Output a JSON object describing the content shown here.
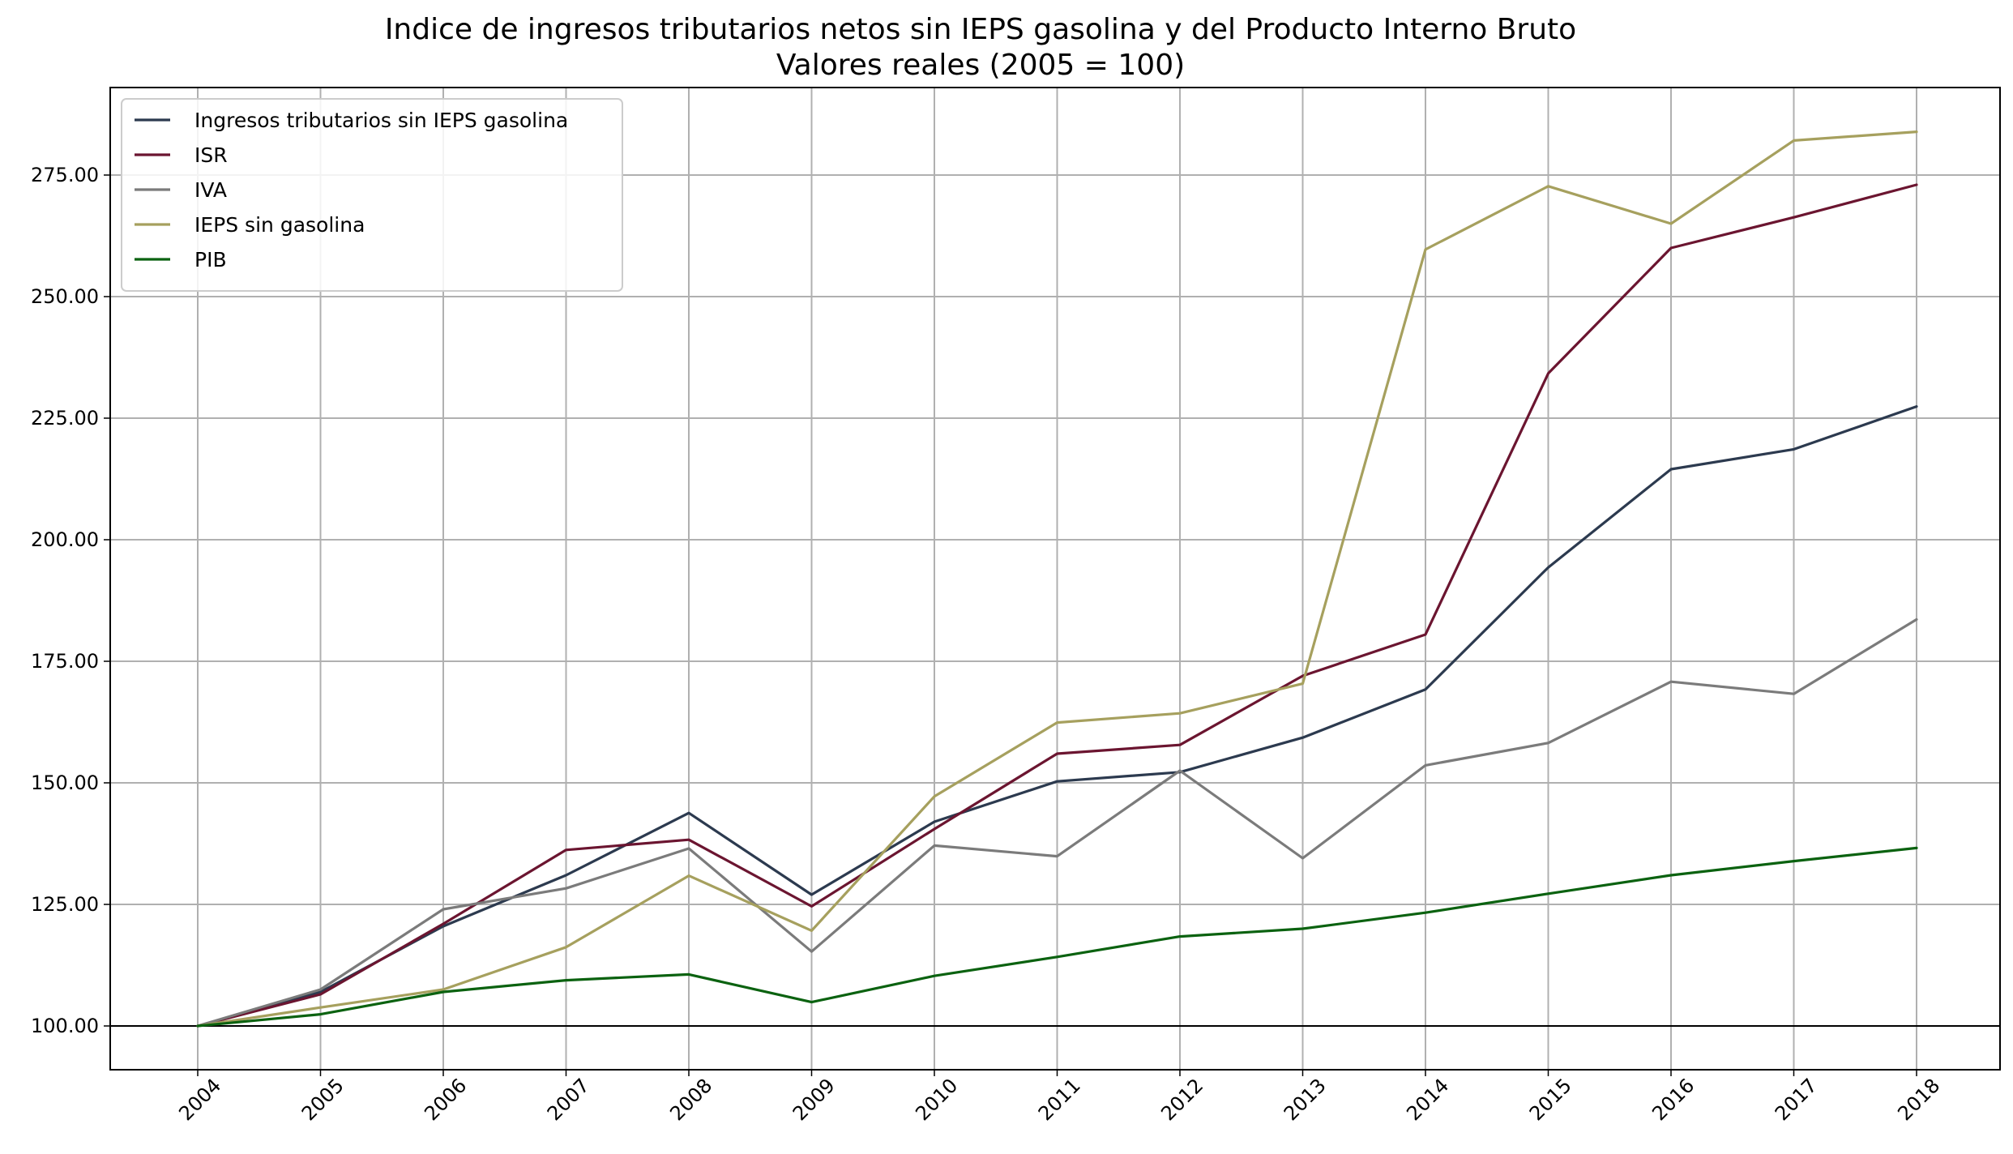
{
  "chart_data": {
    "type": "line",
    "title": "Indice de ingresos tributarios netos sin IEPS gasolina y del Producto Interno Bruto",
    "subtitle": "Valores reales (2005 = 100)",
    "xlabel": "",
    "ylabel": "",
    "x": [
      "2004",
      "2005",
      "2006",
      "2007",
      "2008",
      "2009",
      "2010",
      "2011",
      "2012",
      "2013",
      "2014",
      "2015",
      "2016",
      "2017",
      "2018"
    ],
    "y_ticks": [
      "100.00",
      "125.00",
      "150.00",
      "175.00",
      "200.00",
      "225.00",
      "250.00",
      "275.00"
    ],
    "ylim": [
      91,
      293
    ],
    "grid": true,
    "baseline": 100,
    "legend_position": "top-left",
    "series": [
      {
        "name": "Ingresos tributarios sin IEPS gasolina",
        "color": "#2c3a4f",
        "values": [
          100.0,
          107.0,
          120.5,
          131.0,
          143.8,
          127.0,
          142.0,
          150.3,
          152.2,
          159.3,
          169.2,
          194.3,
          214.5,
          218.6,
          227.4
        ]
      },
      {
        "name": "ISR",
        "color": "#6b1530",
        "values": [
          100.0,
          106.5,
          121.0,
          136.2,
          138.3,
          124.6,
          140.5,
          156.0,
          157.8,
          172.0,
          180.5,
          234.2,
          260.0,
          266.3,
          273.0
        ]
      },
      {
        "name": "IVA",
        "color": "#7b7b7b",
        "values": [
          100.0,
          107.5,
          124.0,
          128.3,
          136.5,
          115.3,
          137.1,
          134.9,
          152.5,
          134.5,
          153.6,
          158.2,
          170.8,
          168.3,
          183.6
        ]
      },
      {
        "name": "IEPS sin gasolina",
        "color": "#a6a05e",
        "values": [
          100.0,
          103.8,
          107.5,
          116.2,
          130.9,
          119.6,
          147.2,
          162.4,
          164.3,
          170.4,
          259.7,
          272.7,
          265.0,
          282.1,
          283.9
        ]
      },
      {
        "name": "PIB",
        "color": "#0b6210",
        "values": [
          100.0,
          102.4,
          107.0,
          109.4,
          110.6,
          104.9,
          110.3,
          114.2,
          118.4,
          120.0,
          123.3,
          127.2,
          131.0,
          133.9,
          136.6
        ]
      }
    ]
  }
}
